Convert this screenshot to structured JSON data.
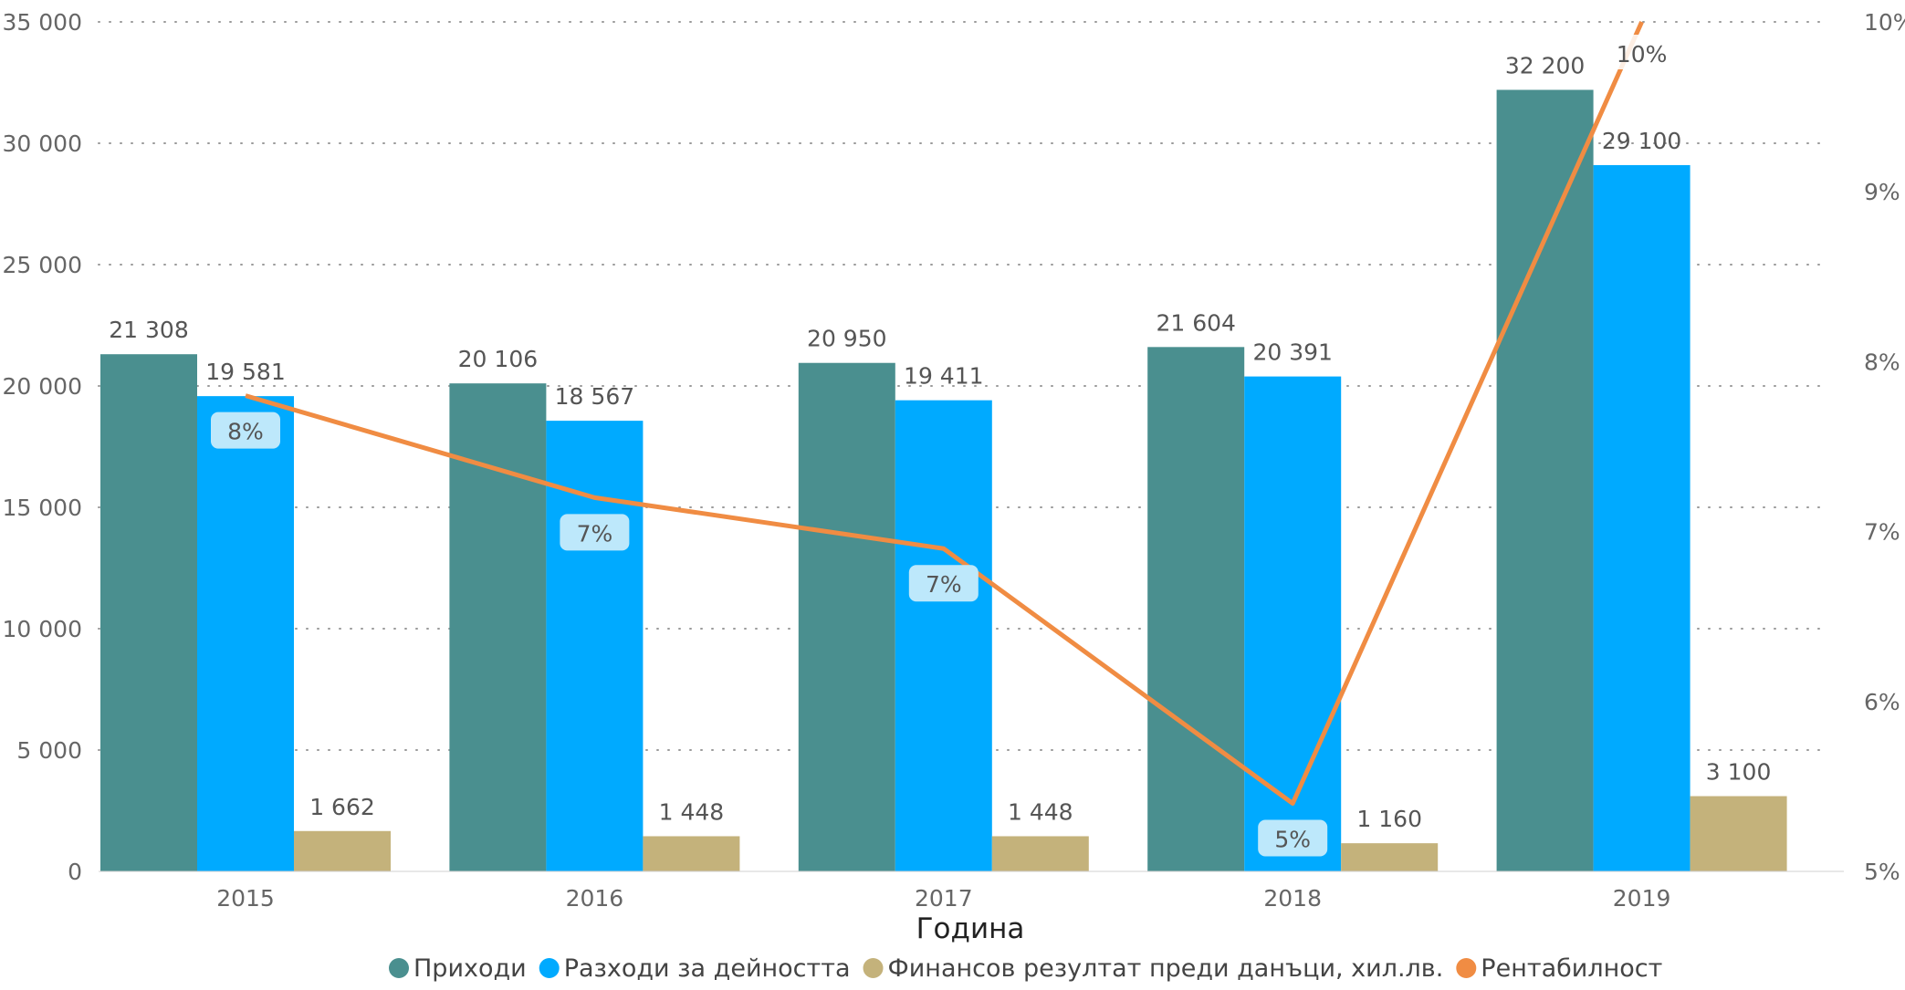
{
  "chart_data": {
    "type": "bar",
    "xlabel": "Година",
    "categories": [
      "2015",
      "2016",
      "2017",
      "2018",
      "2019"
    ],
    "ylim": [
      0,
      35000
    ],
    "y_ticks": [
      "0",
      "5 000",
      "10 000",
      "15 000",
      "20 000",
      "25 000",
      "30 000",
      "35 000"
    ],
    "y2lim": [
      5,
      10
    ],
    "y2_ticks": [
      "5%",
      "6%",
      "7%",
      "8%",
      "9%",
      "10%"
    ],
    "grid": "dotted horizontal",
    "legend_position": "bottom",
    "series": [
      {
        "name": "Приходи",
        "type": "bar",
        "color": "#4a8f8f",
        "values": [
          21308,
          20106,
          20950,
          21604,
          32200
        ],
        "labels": [
          "21 308",
          "20 106",
          "20 950",
          "21 604",
          "32 200"
        ]
      },
      {
        "name": "Разходи за дейността",
        "type": "bar",
        "color": "#00aaff",
        "values": [
          19581,
          18567,
          19411,
          20391,
          29100
        ],
        "labels": [
          "19 581",
          "18 567",
          "19 411",
          "20 391",
          "29 100"
        ]
      },
      {
        "name": "Финансов резултат преди данъци, хил.лв.",
        "type": "bar",
        "color": "#c4b27b",
        "values": [
          1662,
          1448,
          1448,
          1160,
          3100
        ],
        "labels": [
          "1 662",
          "1 448",
          "1 448",
          "1 160",
          "3 100"
        ]
      },
      {
        "name": "Рентабилност",
        "type": "line",
        "axis": "right",
        "color": "#f08c43",
        "values": [
          7.8,
          7.2,
          6.9,
          5.4,
          10.0
        ],
        "labels": [
          "8%",
          "7%",
          "7%",
          "5%",
          "10%"
        ]
      }
    ]
  }
}
